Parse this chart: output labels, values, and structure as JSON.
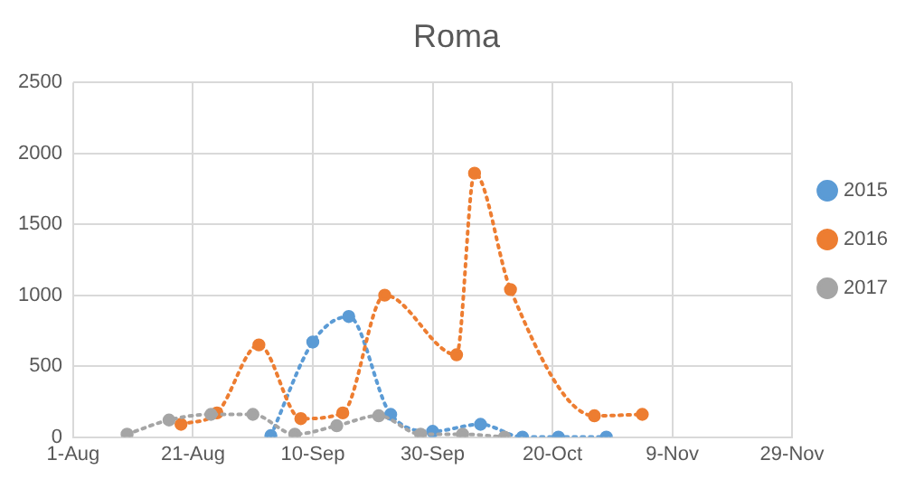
{
  "chart_data": {
    "type": "line",
    "title": "Roma",
    "xlim": [
      "--08-01",
      "--11-29"
    ],
    "xticks": [
      {
        "value": "--08-01",
        "label": "1-Aug"
      },
      {
        "value": "--08-21",
        "label": "21-Aug"
      },
      {
        "value": "--09-10",
        "label": "10-Sep"
      },
      {
        "value": "--09-30",
        "label": "30-Sep"
      },
      {
        "value": "--10-20",
        "label": "20-Oct"
      },
      {
        "value": "--11-09",
        "label": "9-Nov"
      },
      {
        "value": "--11-29",
        "label": "29-Nov"
      }
    ],
    "ylim": [
      0,
      2500
    ],
    "yticks": [
      0,
      500,
      1000,
      1500,
      2000,
      2500
    ],
    "grid": true,
    "legend": "right",
    "marker": "circle",
    "line_style": "dotted",
    "series": [
      {
        "name": "2015",
        "color": "#5b9bd5",
        "x": [
          "--09-03",
          "--09-10",
          "--09-16",
          "--09-23",
          "--09-30",
          "--10-08",
          "--10-15",
          "--10-21",
          "--10-29"
        ],
        "values": [
          10,
          670,
          850,
          160,
          40,
          90,
          0,
          0,
          0
        ]
      },
      {
        "name": "2016",
        "color": "#ed7d31",
        "x": [
          "--08-19",
          "--08-25",
          "--09-01",
          "--09-08",
          "--09-15",
          "--09-22",
          "--10-04",
          "--10-07",
          "--10-13",
          "--10-27",
          "--11-04"
        ],
        "values": [
          90,
          170,
          650,
          130,
          170,
          1000,
          580,
          1860,
          1040,
          150,
          160
        ]
      },
      {
        "name": "2017",
        "color": "#a5a5a5",
        "x": [
          "--08-10",
          "--08-17",
          "--08-24",
          "--08-31",
          "--09-07",
          "--09-14",
          "--09-21",
          "--09-28",
          "--10-05",
          "--10-12"
        ],
        "values": [
          20,
          120,
          160,
          160,
          20,
          80,
          150,
          20,
          20,
          0
        ]
      }
    ]
  }
}
